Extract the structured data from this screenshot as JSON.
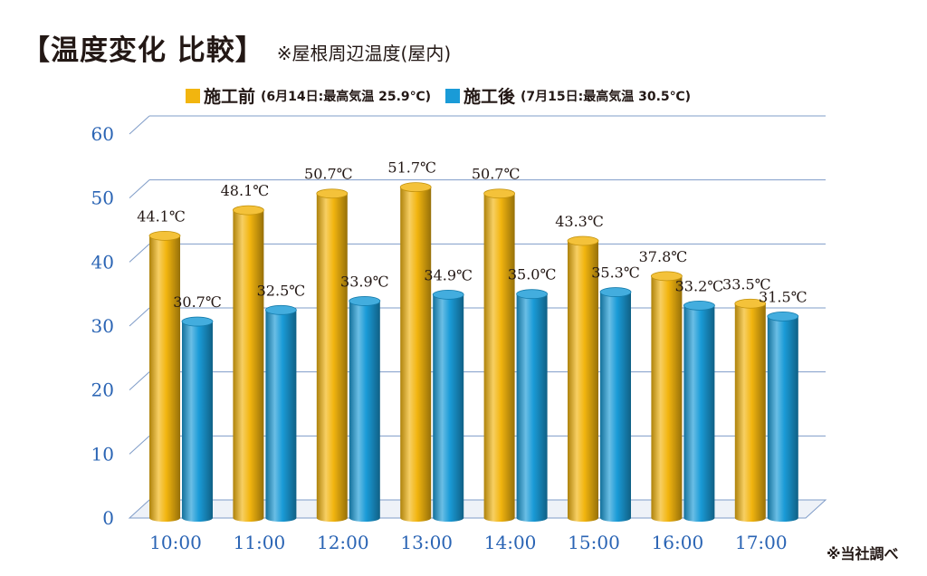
{
  "title": "【温度変化 比較】",
  "subtitle": "※屋根周辺温度(屋内)",
  "footnote": "※当社調べ",
  "colors": {
    "before": "#f2b50f",
    "after": "#1a9bd7",
    "axis_text": "#2a64b4",
    "grid": "#7f9cc8",
    "label_text": "#231815"
  },
  "chart_data": {
    "type": "bar",
    "categories": [
      "10:00",
      "11:00",
      "12:00",
      "13:00",
      "14:00",
      "15:00",
      "16:00",
      "17:00"
    ],
    "series": [
      {
        "name": "施工前",
        "note": "(6月14日:最高気温 25.9℃)",
        "values": [
          44.1,
          48.1,
          50.7,
          51.7,
          50.7,
          43.3,
          37.8,
          33.5
        ],
        "labels": [
          "44.1℃",
          "48.1℃",
          "50.7℃",
          "51.7℃",
          "50.7℃",
          "43.3℃",
          "37.8℃",
          "33.5℃"
        ]
      },
      {
        "name": "施工後",
        "note": "(7月15日:最高気温 30.5℃)",
        "values": [
          30.7,
          32.5,
          33.9,
          34.9,
          35.0,
          35.3,
          33.2,
          31.5
        ],
        "labels": [
          "30.7℃",
          "32.5℃",
          "33.9℃",
          "34.9℃",
          "35.0℃",
          "35.3℃",
          "33.2℃",
          "31.5℃"
        ]
      }
    ],
    "yticks": [
      0,
      10,
      20,
      30,
      40,
      50,
      60
    ],
    "ylim": [
      0,
      60
    ],
    "grid": true,
    "legend_position": "top"
  }
}
